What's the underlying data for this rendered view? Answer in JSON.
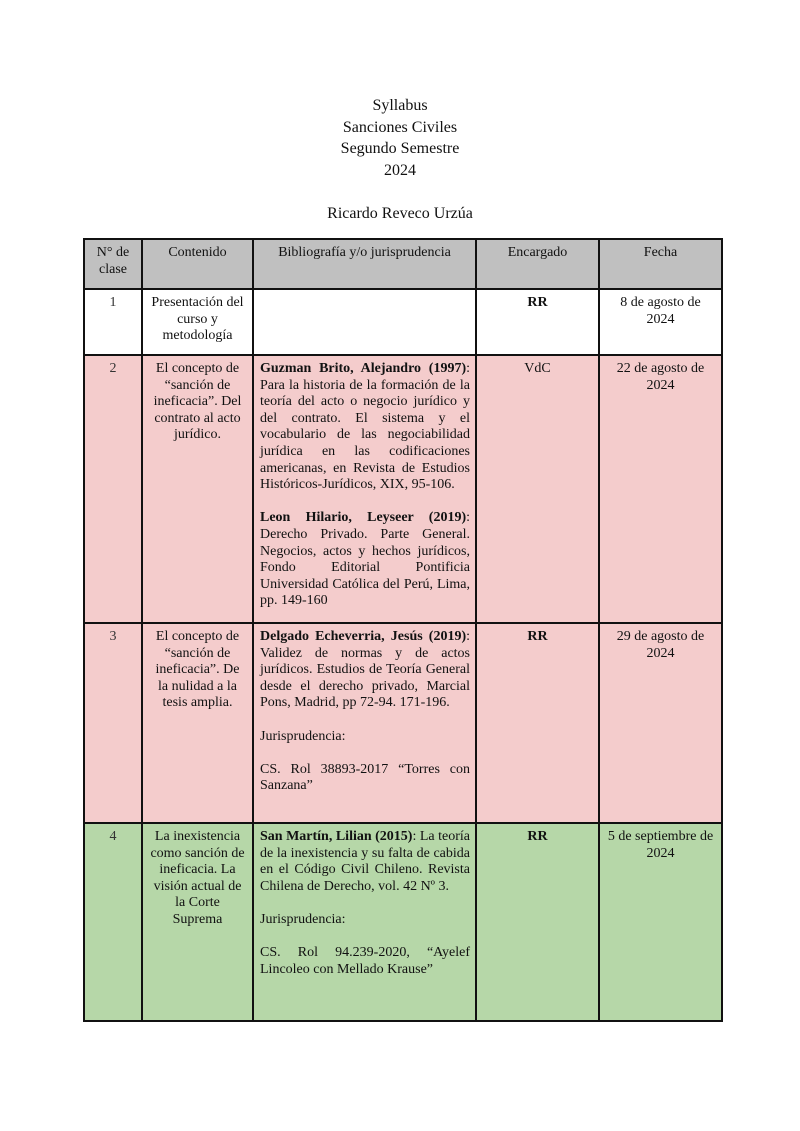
{
  "header": {
    "lines": [
      "Syllabus",
      "Sanciones Civiles",
      "Segundo Semestre",
      "2024"
    ],
    "author": "Ricardo Reveco Urzúa"
  },
  "colors": {
    "header_bg": "#c0c0c0",
    "pink_row": "#f4cccc",
    "green_row": "#b6d7a8"
  },
  "table": {
    "columns": [
      "N° de clase",
      "Contenido",
      "Bibliografía y/o jurisprudencia",
      "Encargado",
      "Fecha"
    ],
    "rows": [
      {
        "num": "1",
        "contenido": "Presentación del curso y metodología",
        "bib": [],
        "encargado": "RR",
        "fecha": "8 de agosto de 2024"
      },
      {
        "num": "2",
        "contenido": "El concepto de “sanción de ineficacia”. Del contrato al acto jurídico.",
        "bib": [
          {
            "bold": "Guzman Brito, Alejandro (1997)",
            "text": ": Para la historia de la formación de la teoría del acto o negocio jurídico y del contrato. El sistema y el vocabulario de las negociabilidad jurídica en las codificaciones americanas, en Revista de Estudios Históricos-Jurídicos, XIX, 95-106."
          },
          {
            "bold": "Leon Hilario, Leyseer (2019)",
            "text": ": Derecho Privado. Parte General. Negocios, actos y hechos jurídicos, Fondo Editorial Pontificia Universidad Católica del Perú, Lima, pp. 149-160"
          }
        ],
        "encargado": "VdC",
        "fecha": "22 de agosto de 2024"
      },
      {
        "num": "3",
        "contenido": "El concepto de “sanción de ineficacia”. De la nulidad a la tesis amplia.",
        "bib": [
          {
            "bold": "Delgado Echeverria, Jesús (2019)",
            "text": ": Validez de normas y de actos jurídicos. Estudios de Teoría General desde el derecho privado, Marcial Pons, Madrid, pp 72-94. 171-196."
          },
          {
            "bold": "",
            "text": "Jurisprudencia:"
          },
          {
            "bold": "",
            "text": "CS. Rol 38893-2017 “Torres con Sanzana”"
          }
        ],
        "encargado": "RR",
        "fecha": "29 de agosto de 2024"
      },
      {
        "num": "4",
        "contenido": "La inexistencia como sanción de ineficacia. La visión actual de la Corte Suprema",
        "bib": [
          {
            "bold": "San Martín, Lilian (2015)",
            "text": ": La teoría de la inexistencia y su falta de cabida en el Código Civil Chileno. Revista Chilena de Derecho, vol. 42 Nº 3."
          },
          {
            "bold": "",
            "text": "Jurisprudencia:"
          },
          {
            "bold": "",
            "text": "CS. Rol 94.239-2020, “Ayelef Lincoleo con Mellado Krause”"
          }
        ],
        "encargado": "RR",
        "fecha": "5 de septiembre de 2024"
      }
    ]
  }
}
